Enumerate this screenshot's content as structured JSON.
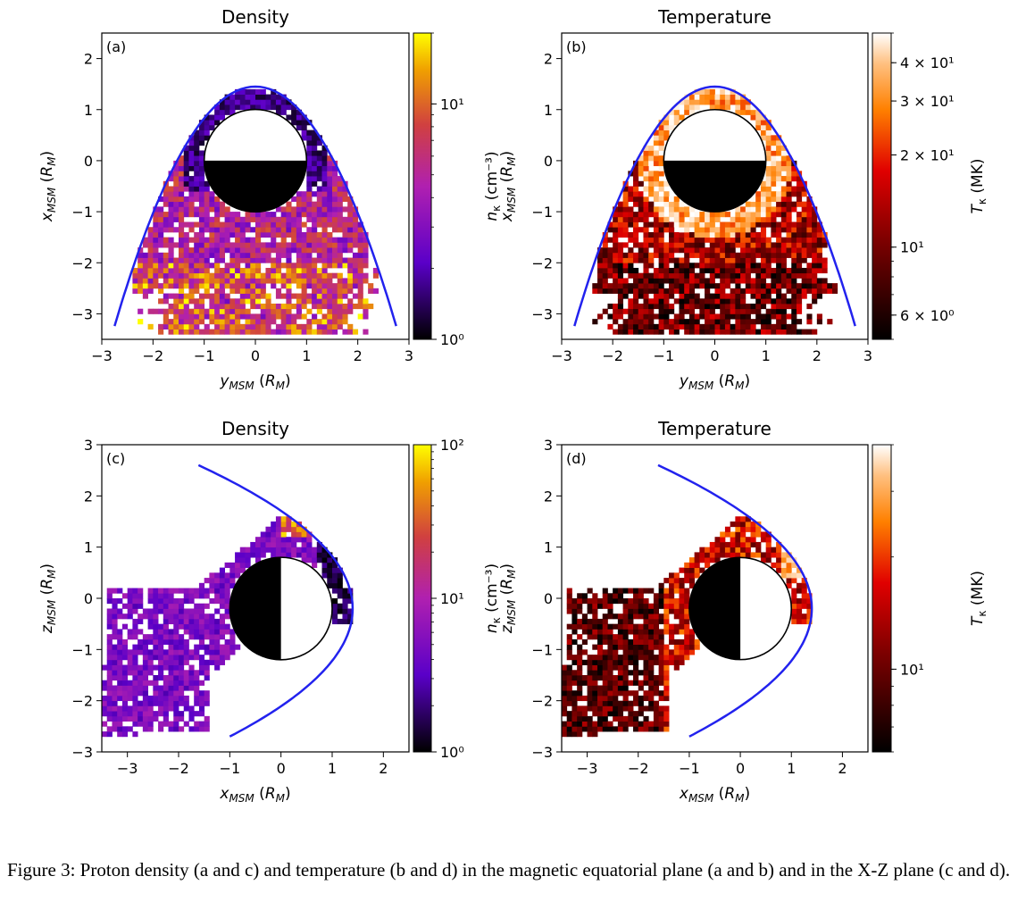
{
  "caption": "Figure 3: Proton density (a and c) and temperature (b and d) in the magnetic equatorial plane (a and b) and in the X-Z plane (c and d).",
  "chart_data": [
    {
      "type": "heatmap",
      "panel_label": "(a)",
      "title": "Density",
      "xlabel": "y_MSM (R_M)",
      "ylabel": "x_MSM (R_M)",
      "xlim": [
        -3,
        3
      ],
      "ylim": [
        -3.5,
        2.5
      ],
      "xticks": [
        "−3",
        "−2",
        "−1",
        "0",
        "1",
        "2",
        "3"
      ],
      "yticks": [
        "2",
        "1",
        "0",
        "−1",
        "−2",
        "−3"
      ],
      "colorbar": {
        "label": "n_κ (cm⁻³)",
        "scale": "log",
        "range": [
          1,
          20
        ],
        "ticks": [
          "10¹",
          "10⁰"
        ],
        "colormap": "gnuplot"
      },
      "planet": {
        "center": [
          0,
          0
        ],
        "radius": 1,
        "dark_side": "bottom"
      },
      "boundary_color": "#2222ee"
    },
    {
      "type": "heatmap",
      "panel_label": "(b)",
      "title": "Temperature",
      "xlabel": "y_MSM (R_M)",
      "ylabel": "x_MSM (R_M)",
      "xlim": [
        -3,
        3
      ],
      "ylim": [
        -3.5,
        2.5
      ],
      "xticks": [
        "−3",
        "−2",
        "−1",
        "0",
        "1",
        "2",
        "3"
      ],
      "yticks": [
        "2",
        "1",
        "0",
        "−1",
        "−2",
        "−3"
      ],
      "colorbar": {
        "label": "T_κ (MK)",
        "scale": "log",
        "range": [
          5,
          50
        ],
        "ticks": [
          "4 × 10¹",
          "3 × 10¹",
          "2 × 10¹",
          "10¹",
          "6 × 10⁰"
        ],
        "colormap": "gist_heat"
      },
      "planet": {
        "center": [
          0,
          0
        ],
        "radius": 1,
        "dark_side": "bottom"
      },
      "boundary_color": "#2222ee"
    },
    {
      "type": "heatmap",
      "panel_label": "(c)",
      "title": "Density",
      "xlabel": "x_MSM (R_M)",
      "ylabel": "z_MSM (R_M)",
      "xlim": [
        -3.5,
        2.5
      ],
      "ylim": [
        -3,
        3
      ],
      "xticks": [
        "−3",
        "−2",
        "−1",
        "0",
        "1",
        "2"
      ],
      "yticks": [
        "3",
        "2",
        "1",
        "0",
        "−1",
        "−2",
        "−3"
      ],
      "colorbar": {
        "label": "n_κ (cm⁻³)",
        "scale": "log",
        "range": [
          1,
          100
        ],
        "ticks": [
          "10²",
          "10¹",
          "10⁰"
        ],
        "colormap": "gnuplot"
      },
      "planet": {
        "center": [
          0,
          -0.2
        ],
        "radius": 1,
        "dark_side": "left"
      },
      "boundary_color": "#2222ee"
    },
    {
      "type": "heatmap",
      "panel_label": "(d)",
      "title": "Temperature",
      "xlabel": "x_MSM (R_M)",
      "ylabel": "z_MSM (R_M)",
      "xlim": [
        -3.5,
        2.5
      ],
      "ylim": [
        -3,
        3
      ],
      "xticks": [
        "−3",
        "−2",
        "−1",
        "0",
        "1",
        "2"
      ],
      "yticks": [
        "3",
        "2",
        "1",
        "0",
        "−1",
        "−2",
        "−3"
      ],
      "colorbar": {
        "label": "T_κ (MK)",
        "scale": "log",
        "range": [
          6,
          40
        ],
        "ticks": [
          "10¹"
        ],
        "colormap": "gist_heat"
      },
      "planet": {
        "center": [
          0,
          -0.2
        ],
        "radius": 1,
        "dark_side": "left"
      },
      "boundary_color": "#2222ee"
    }
  ]
}
